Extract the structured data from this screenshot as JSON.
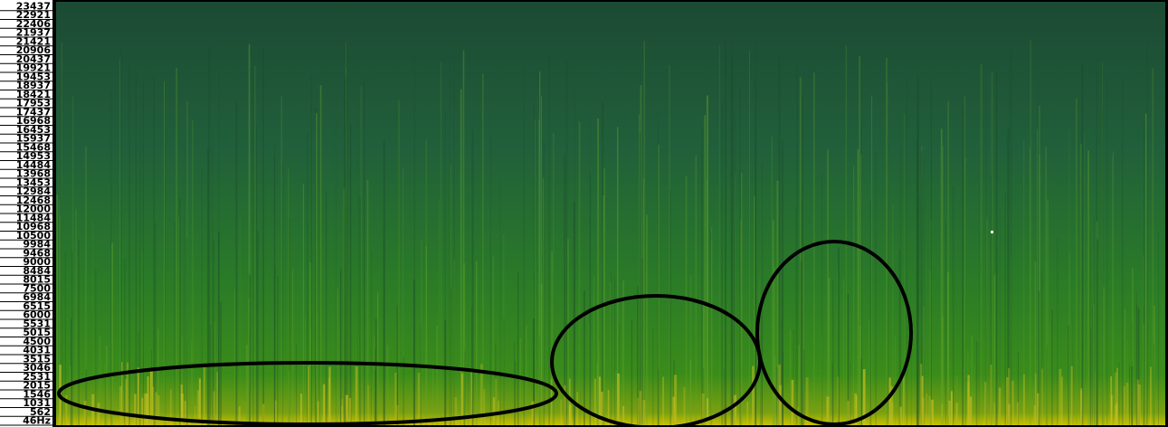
{
  "frequency_axis": {
    "labels": [
      "23437",
      "22921",
      "22406",
      "21937",
      "21421",
      "20906",
      "20437",
      "19921",
      "19453",
      "18937",
      "18421",
      "17953",
      "17437",
      "16968",
      "16453",
      "15937",
      "15468",
      "14953",
      "14484",
      "13968",
      "13453",
      "12984",
      "12468",
      "12000",
      "11484",
      "10968",
      "10500",
      "9984",
      "9468",
      "9000",
      "8484",
      "8015",
      "7500",
      "6984",
      "6515",
      "6000",
      "5531",
      "5015",
      "4500",
      "4031",
      "3515",
      "3046",
      "2531",
      "2015",
      "1546",
      "1031",
      "562",
      "46Hz"
    ]
  }
}
